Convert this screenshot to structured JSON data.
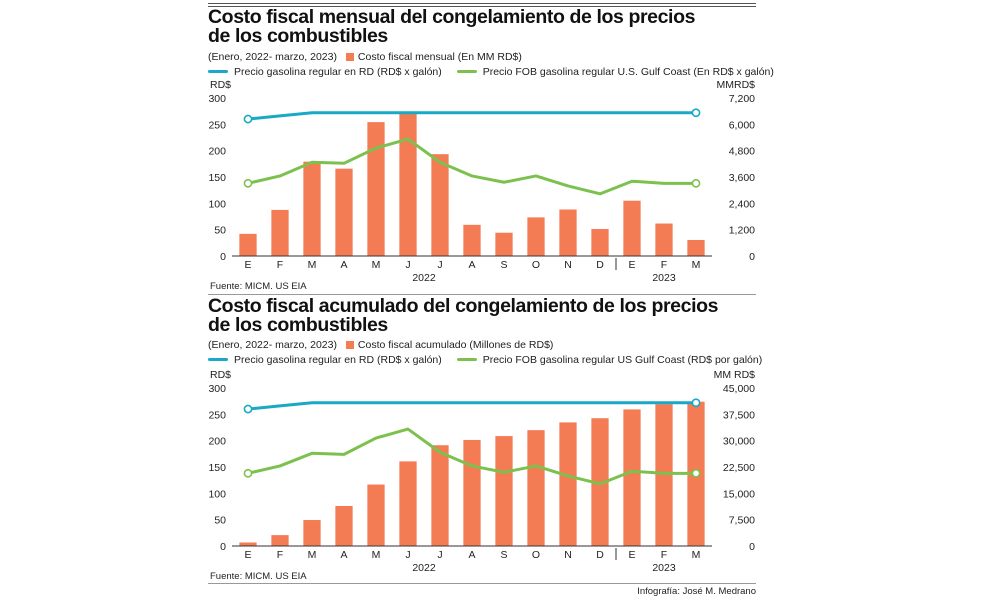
{
  "charts": [
    {
      "title_line1": "Costo fiscal mensual del congelamiento de los precios",
      "title_line2": "de los combustibles",
      "period": "(Enero, 2022-  marzo, 2023)",
      "bar_legend": "Costo fiscal mensual  (En MM RD$)",
      "line1_legend": "Precio gasolina regular en RD (RD$ x galón)",
      "line2_legend": "Precio FOB gasolina regular U.S. Gulf Coast  (En RD$ x galón)",
      "left_unit": "RD$",
      "right_unit": "MMRD$",
      "source": "Fuente: MICM. US EIA"
    },
    {
      "title_line1": "Costo fiscal acumulado del congelamiento de los precios",
      "title_line2": "de los combustibles",
      "period": "(Enero, 2022-  marzo, 2023)",
      "bar_legend": "Costo fiscal acumulado  (Millones de RD$)",
      "line1_legend": "Precio gasolina regular en RD  (RD$ x galón)",
      "line2_legend": "Precio FOB gasolina regular US Gulf Coast  (RD$ por galón)",
      "left_unit": "RD$",
      "right_unit": "MM RD$",
      "source": "Fuente: MICM. US EIA"
    }
  ],
  "credit": "Infografía: José M. Medrano",
  "colors": {
    "bar": "#f47c55",
    "line1": "#19a9c6",
    "line2": "#7cc14e",
    "axis": "#333333"
  },
  "chart_data": [
    {
      "type": "bar",
      "categories": [
        "E",
        "F",
        "M",
        "A",
        "M",
        "J",
        "J",
        "A",
        "S",
        "O",
        "N",
        "D",
        "E",
        "F",
        "M"
      ],
      "year_labels": [
        "2022",
        "2023"
      ],
      "left_axis": {
        "ylim": [
          0,
          300
        ],
        "ticks": [
          "0",
          "50",
          "100",
          "150",
          "200",
          "250",
          "300"
        ]
      },
      "right_axis": {
        "ylim": [
          0,
          7200
        ],
        "ticks": [
          "0",
          "1,200",
          "2,400",
          "3,600",
          "4,800",
          "6,000",
          "7,200"
        ]
      },
      "series": [
        {
          "name": "Costo fiscal mensual  (En MM RD$)",
          "kind": "bar",
          "axis": "right",
          "values": [
            1010,
            2100,
            4300,
            3980,
            6100,
            6550,
            4640,
            1420,
            1060,
            1760,
            2120,
            1230,
            2520,
            1480,
            730
          ]
        },
        {
          "name": "Precio gasolina regular en RD (RD$ x galón)",
          "kind": "line",
          "axis": "left",
          "values": [
            260,
            266,
            272,
            272,
            272,
            272,
            272,
            272,
            272,
            272,
            272,
            272,
            272,
            272,
            272
          ]
        },
        {
          "name": "Precio FOB gasolina regular U.S. Gulf Coast  (En RD$ x galón)",
          "kind": "line",
          "axis": "left",
          "values": [
            138,
            152,
            178,
            176,
            205,
            222,
            178,
            152,
            140,
            152,
            133,
            118,
            142,
            138,
            138
          ]
        }
      ],
      "grid": false
    },
    {
      "type": "bar",
      "categories": [
        "E",
        "F",
        "M",
        "A",
        "M",
        "J",
        "J",
        "A",
        "S",
        "O",
        "N",
        "D",
        "E",
        "F",
        "M"
      ],
      "year_labels": [
        "2022",
        "2023"
      ],
      "left_axis": {
        "ylim": [
          0,
          300
        ],
        "ticks": [
          "0",
          "50",
          "100",
          "150",
          "200",
          "250",
          "300"
        ]
      },
      "right_axis": {
        "ylim": [
          0,
          45000
        ],
        "ticks": [
          "0",
          "7,500",
          "15,000",
          "22,500",
          "30,000",
          "37,500",
          "45,000"
        ]
      },
      "series": [
        {
          "name": "Costo fiscal acumulado  (Millones de RD$)",
          "kind": "bar",
          "axis": "right",
          "values": [
            1000,
            3100,
            7400,
            11400,
            17500,
            24100,
            28700,
            30200,
            31300,
            33000,
            35200,
            36400,
            38900,
            40400,
            41100
          ]
        },
        {
          "name": "Precio gasolina regular en RD  (RD$ x galón)",
          "kind": "line",
          "axis": "left",
          "values": [
            260,
            266,
            272,
            272,
            272,
            272,
            272,
            272,
            272,
            272,
            272,
            272,
            272,
            272,
            272
          ]
        },
        {
          "name": "Precio FOB gasolina regular US Gulf Coast  (RD$ por galón)",
          "kind": "line",
          "axis": "left",
          "values": [
            138,
            152,
            176,
            174,
            205,
            222,
            178,
            152,
            140,
            152,
            133,
            118,
            142,
            138,
            138
          ]
        }
      ],
      "grid": false
    }
  ]
}
